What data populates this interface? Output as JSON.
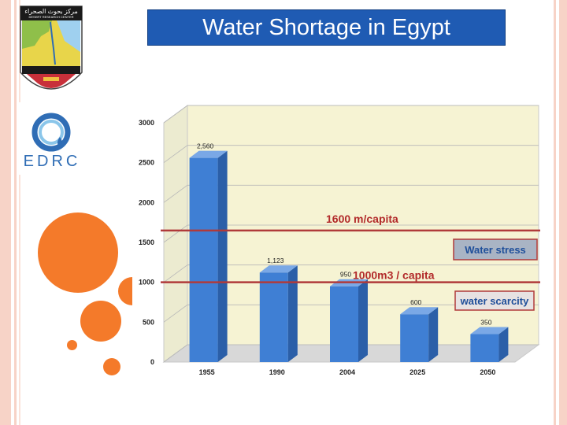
{
  "title": "Water Shortage in Egypt",
  "logos": {
    "drc": {
      "arabic": "مركز بحوث الصحراء",
      "english": "DESERT RESEARCH CENTER"
    },
    "edrc": {
      "text": "EDRC"
    }
  },
  "colors": {
    "title_bg": "#1f5bb3",
    "bar": "#3f7fd4",
    "plot_bg": "#f6f3d3",
    "threshold_line": "#b03a3a",
    "accent_orange": "#f47a2a"
  },
  "chart_data": {
    "type": "bar",
    "categories": [
      "1955",
      "1990",
      "2004",
      "2025",
      "2050"
    ],
    "values": [
      2560,
      1123,
      950,
      600,
      350
    ],
    "value_labels": [
      "2,560",
      "1,123",
      "950",
      "600",
      "350"
    ],
    "ylim": [
      0,
      3000
    ],
    "yticks": [
      0,
      500,
      1000,
      1500,
      2000,
      2500,
      3000
    ],
    "grid": true,
    "thresholds": [
      {
        "value": 1600,
        "label": "1600 m/capita",
        "badge": "Water stress"
      },
      {
        "value": 1000,
        "label": "1000m3 / capita",
        "badge": "water scarcity"
      }
    ]
  }
}
